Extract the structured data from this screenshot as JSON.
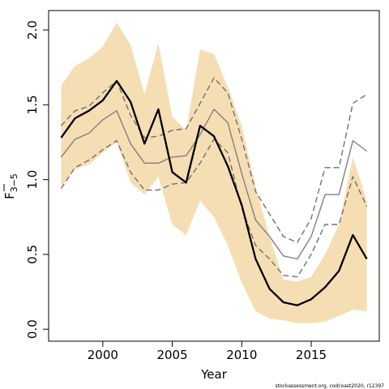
{
  "chart_data": {
    "type": "line",
    "xlabel": "Year",
    "ylabel_main": "F",
    "ylabel_sub": "3−5",
    "xlim": [
      1996.1,
      2019.9
    ],
    "ylim": [
      -0.08,
      2.13
    ],
    "xticks": [
      2000,
      2005,
      2010,
      2015
    ],
    "yticks": [
      0.0,
      0.5,
      1.0,
      1.5,
      2.0
    ],
    "ytick_labels": [
      "0.0",
      "0.5",
      "1.0",
      "1.5",
      "2.0"
    ],
    "colors": {
      "band": "#f5deb3",
      "estimate": "#000000",
      "previous": "#808080",
      "previous_ci": "#707070",
      "axis": "#000000"
    },
    "x": [
      1997,
      1998,
      1999,
      2000,
      2001,
      2002,
      2003,
      2004,
      2005,
      2006,
      2007,
      2008,
      2009,
      2010,
      2011,
      2012,
      2013,
      2014,
      2015,
      2016,
      2017,
      2018,
      2019
    ],
    "series": [
      {
        "role": "band-upper",
        "values": [
          1.63,
          1.76,
          1.81,
          1.89,
          2.05,
          1.9,
          1.57,
          1.91,
          1.42,
          1.33,
          1.87,
          1.84,
          1.62,
          1.36,
          0.95,
          0.62,
          0.33,
          0.32,
          0.35,
          0.5,
          0.7,
          1.15,
          0.86
        ]
      },
      {
        "role": "band-lower",
        "values": [
          0.95,
          1.07,
          1.1,
          1.18,
          1.25,
          0.98,
          0.9,
          1.02,
          0.7,
          0.63,
          0.86,
          0.75,
          0.56,
          0.31,
          0.12,
          0.07,
          0.06,
          0.04,
          0.04,
          0.05,
          0.09,
          0.13,
          0.12
        ]
      },
      {
        "role": "estimate",
        "values": [
          1.28,
          1.41,
          1.46,
          1.53,
          1.66,
          1.52,
          1.24,
          1.47,
          1.05,
          0.98,
          1.36,
          1.29,
          1.09,
          0.83,
          0.47,
          0.27,
          0.18,
          0.16,
          0.2,
          0.28,
          0.39,
          0.63,
          0.47
        ]
      },
      {
        "role": "previous",
        "values": [
          1.15,
          1.27,
          1.31,
          1.4,
          1.46,
          1.24,
          1.11,
          1.11,
          1.15,
          1.16,
          1.3,
          1.47,
          1.38,
          1.04,
          0.73,
          0.62,
          0.49,
          0.47,
          0.62,
          0.9,
          0.9,
          1.26,
          1.19
        ]
      },
      {
        "role": "previous-upper",
        "values": [
          1.36,
          1.46,
          1.49,
          1.58,
          1.66,
          1.43,
          1.28,
          1.29,
          1.33,
          1.34,
          1.51,
          1.68,
          1.58,
          1.27,
          0.92,
          0.77,
          0.62,
          0.58,
          0.74,
          1.08,
          1.08,
          1.51,
          1.57
        ]
      },
      {
        "role": "previous-lower",
        "values": [
          0.94,
          1.08,
          1.13,
          1.2,
          1.26,
          1.05,
          0.93,
          0.93,
          0.97,
          0.98,
          1.11,
          1.27,
          1.18,
          0.81,
          0.56,
          0.47,
          0.36,
          0.35,
          0.5,
          0.7,
          0.7,
          1.02,
          0.82
        ]
      }
    ]
  },
  "footer": {
    "credit": "stockassessment.org, codcoast2020, r12397"
  }
}
